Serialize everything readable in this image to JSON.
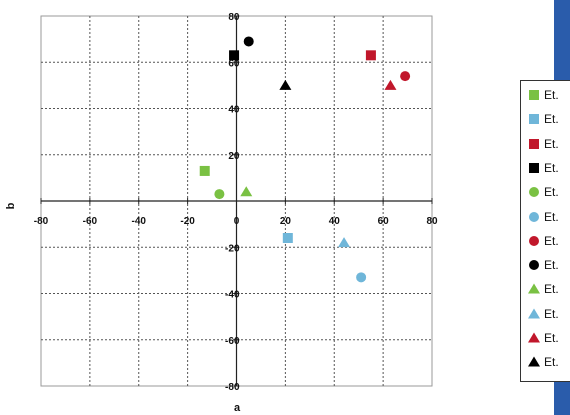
{
  "chart_data": {
    "type": "scatter",
    "title": "",
    "xlabel": "a",
    "ylabel": "b",
    "xlim": [
      -80,
      80
    ],
    "ylim": [
      -80,
      80
    ],
    "xticks": [
      -80,
      -60,
      -40,
      -20,
      0,
      20,
      40,
      60,
      80
    ],
    "yticks": [
      -80,
      -60,
      -40,
      -20,
      0,
      20,
      40,
      60,
      80
    ],
    "tick_labels_x": [
      "-80",
      "-60",
      "-40",
      "-20",
      "0",
      "20",
      "40",
      "60",
      "80"
    ],
    "tick_labels_y": [
      "-80",
      "-60",
      "-40",
      "-20",
      "",
      "20",
      "40",
      "60",
      "80"
    ],
    "grid": true,
    "legend_position": "right",
    "series": [
      {
        "name": "Et.",
        "marker": "square",
        "color": "#7ac143",
        "points": [
          {
            "x": -13,
            "y": 13
          }
        ]
      },
      {
        "name": "Et.",
        "marker": "square",
        "color": "#6fb6d9",
        "points": [
          {
            "x": 21,
            "y": -16
          }
        ]
      },
      {
        "name": "Et.",
        "marker": "square",
        "color": "#c1172b",
        "points": [
          {
            "x": 55,
            "y": 63
          }
        ]
      },
      {
        "name": "Et.",
        "marker": "square",
        "color": "#000000",
        "points": [
          {
            "x": -1,
            "y": 63
          }
        ]
      },
      {
        "name": "Et.",
        "marker": "circle",
        "color": "#7ac143",
        "points": [
          {
            "x": -7,
            "y": 3
          }
        ]
      },
      {
        "name": "Et.",
        "marker": "circle",
        "color": "#6fb6d9",
        "points": [
          {
            "x": 51,
            "y": -33
          }
        ]
      },
      {
        "name": "Et.",
        "marker": "circle",
        "color": "#c1172b",
        "points": [
          {
            "x": 69,
            "y": 54
          }
        ]
      },
      {
        "name": "Et.",
        "marker": "circle",
        "color": "#000000",
        "points": [
          {
            "x": 5,
            "y": 69
          }
        ]
      },
      {
        "name": "Et.",
        "marker": "triangle",
        "color": "#7ac143",
        "points": [
          {
            "x": 4,
            "y": 4
          }
        ]
      },
      {
        "name": "Et.",
        "marker": "triangle",
        "color": "#6fb6d9",
        "points": [
          {
            "x": 44,
            "y": -18
          }
        ]
      },
      {
        "name": "Et.",
        "marker": "triangle",
        "color": "#c1172b",
        "points": [
          {
            "x": 63,
            "y": 50
          }
        ]
      },
      {
        "name": "Et.",
        "marker": "triangle",
        "color": "#000000",
        "points": [
          {
            "x": 20,
            "y": 50
          }
        ]
      }
    ]
  }
}
